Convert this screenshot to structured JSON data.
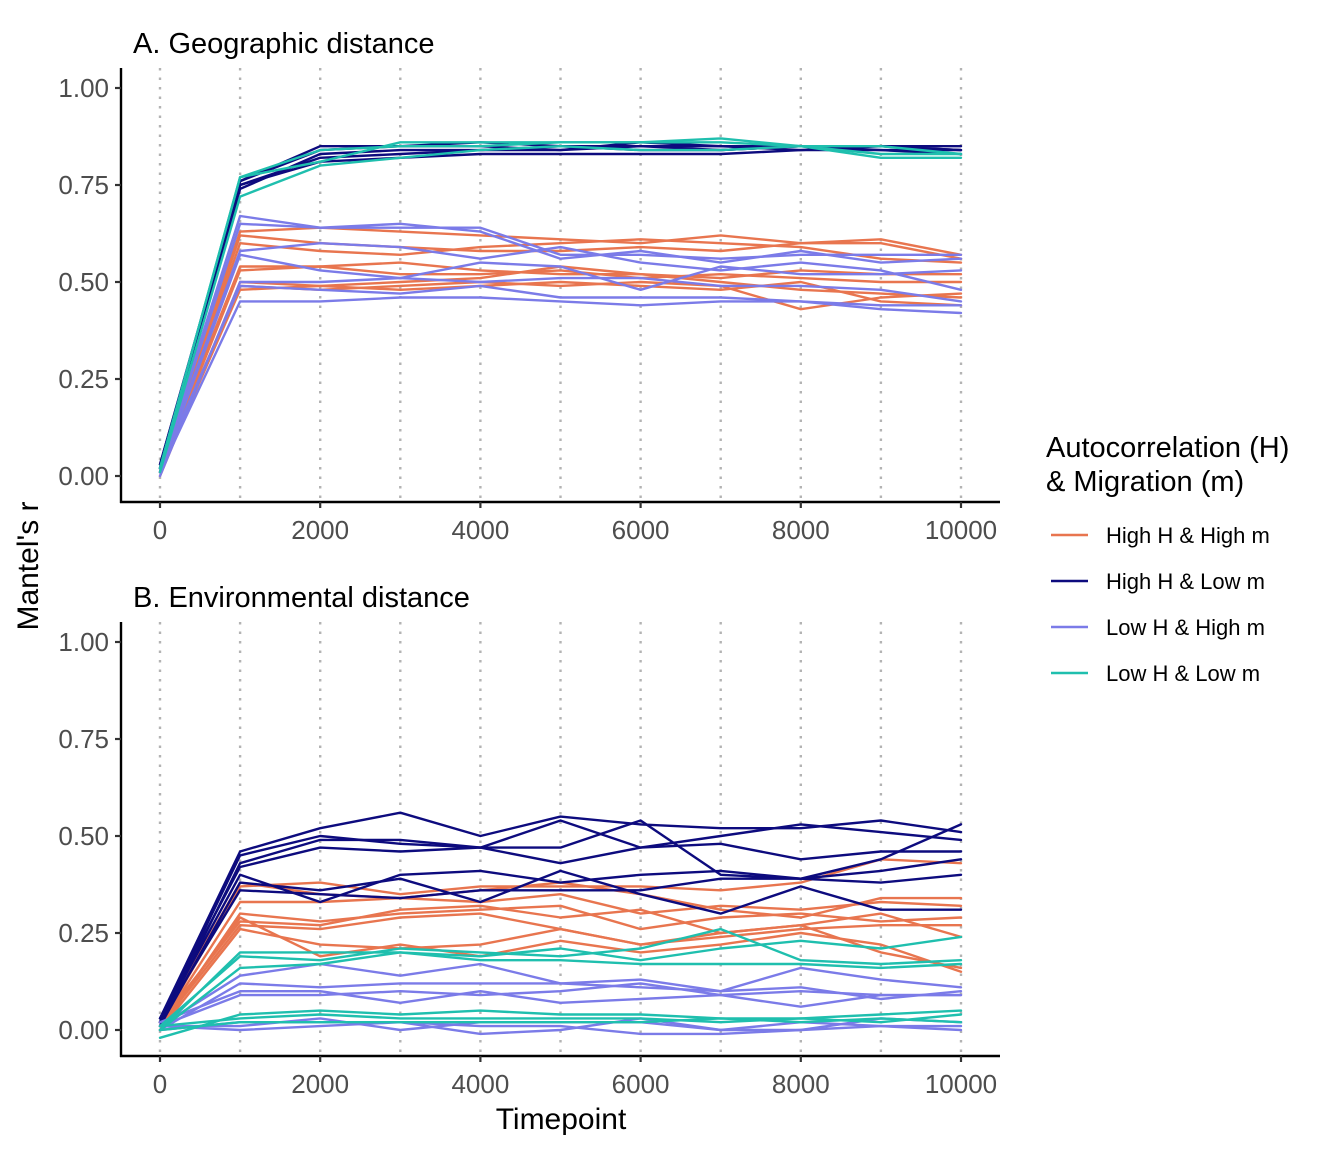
{
  "figure": {
    "ylabel": "Mantel's r",
    "xlabel": "Timepoint"
  },
  "legend": {
    "title_line1": "Autocorrelation (H)",
    "title_line2": "& Migration (m)",
    "placement": "right",
    "items": [
      {
        "label": "High H & High m",
        "color": "#E8754F"
      },
      {
        "label": "High H & Low m",
        "color": "#0D0B7E"
      },
      {
        "label": "Low H & High m",
        "color": "#7B7BE8"
      },
      {
        "label": "Low H & Low m",
        "color": "#1FBFAE"
      }
    ]
  },
  "chart_data": [
    {
      "type": "line",
      "title": "A. Geographic distance",
      "xlabel": "",
      "ylabel": "",
      "xlim": [
        0,
        10000
      ],
      "ylim": [
        0,
        1
      ],
      "x_ticks": [
        "0",
        "2000",
        "4000",
        "6000",
        "8000",
        "10000"
      ],
      "y_ticks": [
        "0.00",
        "0.25",
        "0.50",
        "0.75",
        "1.00"
      ],
      "grid": "vertical dotted at every 1000",
      "x": [
        0,
        1000,
        2000,
        3000,
        4000,
        5000,
        6000,
        7000,
        8000,
        9000,
        10000
      ],
      "series": [
        {
          "group": "High H & High m",
          "values": [
            0.01,
            0.62,
            0.6,
            0.59,
            0.58,
            0.58,
            0.59,
            0.58,
            0.6,
            0.61,
            0.57
          ]
        },
        {
          "group": "High H & High m",
          "values": [
            0.02,
            0.63,
            0.64,
            0.63,
            0.62,
            0.61,
            0.6,
            0.62,
            0.6,
            0.6,
            0.56
          ]
        },
        {
          "group": "High H & High m",
          "values": [
            0.01,
            0.6,
            0.58,
            0.57,
            0.59,
            0.6,
            0.61,
            0.6,
            0.59,
            0.56,
            0.55
          ]
        },
        {
          "group": "High H & High m",
          "values": [
            0.02,
            0.54,
            0.54,
            0.55,
            0.53,
            0.52,
            0.52,
            0.51,
            0.53,
            0.52,
            0.52
          ]
        },
        {
          "group": "High H & High m",
          "values": [
            0.01,
            0.53,
            0.54,
            0.52,
            0.52,
            0.53,
            0.51,
            0.52,
            0.51,
            0.5,
            0.5
          ]
        },
        {
          "group": "High H & High m",
          "values": [
            0.0,
            0.5,
            0.49,
            0.5,
            0.51,
            0.54,
            0.52,
            0.5,
            0.48,
            0.47,
            0.46
          ]
        },
        {
          "group": "High H & High m",
          "values": [
            0.02,
            0.49,
            0.48,
            0.49,
            0.5,
            0.49,
            0.5,
            0.49,
            0.43,
            0.46,
            0.47
          ]
        },
        {
          "group": "High H & High m",
          "values": [
            0.01,
            0.48,
            0.49,
            0.48,
            0.49,
            0.5,
            0.49,
            0.48,
            0.5,
            0.45,
            0.44
          ]
        },
        {
          "group": "High H & Low m",
          "values": [
            0.02,
            0.76,
            0.85,
            0.85,
            0.86,
            0.85,
            0.85,
            0.84,
            0.85,
            0.85,
            0.85
          ]
        },
        {
          "group": "High H & Low m",
          "values": [
            0.03,
            0.75,
            0.82,
            0.83,
            0.84,
            0.84,
            0.85,
            0.85,
            0.84,
            0.85,
            0.84
          ]
        },
        {
          "group": "High H & Low m",
          "values": [
            0.01,
            0.74,
            0.83,
            0.84,
            0.84,
            0.85,
            0.84,
            0.84,
            0.85,
            0.84,
            0.83
          ]
        },
        {
          "group": "High H & Low m",
          "values": [
            0.02,
            0.75,
            0.81,
            0.82,
            0.83,
            0.83,
            0.83,
            0.83,
            0.84,
            0.84,
            0.84
          ]
        },
        {
          "group": "High H & Low m",
          "values": [
            0.03,
            0.76,
            0.84,
            0.85,
            0.85,
            0.84,
            0.86,
            0.85,
            0.85,
            0.85,
            0.84
          ]
        },
        {
          "group": "Low H & High m",
          "values": [
            0.02,
            0.67,
            0.64,
            0.65,
            0.63,
            0.56,
            0.58,
            0.55,
            0.58,
            0.55,
            0.56
          ]
        },
        {
          "group": "Low H & High m",
          "values": [
            0.01,
            0.65,
            0.64,
            0.64,
            0.64,
            0.57,
            0.57,
            0.56,
            0.57,
            0.57,
            0.57
          ]
        },
        {
          "group": "Low H & High m",
          "values": [
            0.02,
            0.58,
            0.6,
            0.59,
            0.56,
            0.59,
            0.55,
            0.53,
            0.55,
            0.53,
            0.48
          ]
        },
        {
          "group": "Low H & High m",
          "values": [
            0.01,
            0.57,
            0.53,
            0.51,
            0.55,
            0.54,
            0.48,
            0.54,
            0.52,
            0.52,
            0.53
          ]
        },
        {
          "group": "Low H & High m",
          "values": [
            0.0,
            0.5,
            0.5,
            0.51,
            0.5,
            0.51,
            0.51,
            0.49,
            0.49,
            0.48,
            0.45
          ]
        },
        {
          "group": "Low H & High m",
          "values": [
            0.02,
            0.49,
            0.48,
            0.47,
            0.49,
            0.46,
            0.46,
            0.46,
            0.45,
            0.44,
            0.44
          ]
        },
        {
          "group": "Low H & High m",
          "values": [
            0.01,
            0.45,
            0.45,
            0.46,
            0.46,
            0.45,
            0.44,
            0.45,
            0.45,
            0.43,
            0.42
          ]
        },
        {
          "group": "Low H & Low m",
          "values": [
            0.02,
            0.77,
            0.81,
            0.86,
            0.86,
            0.86,
            0.86,
            0.86,
            0.85,
            0.82,
            0.82
          ]
        },
        {
          "group": "Low H & Low m",
          "values": [
            0.01,
            0.72,
            0.8,
            0.82,
            0.84,
            0.85,
            0.84,
            0.84,
            0.85,
            0.85,
            0.83
          ]
        },
        {
          "group": "Low H & Low m",
          "values": [
            0.02,
            0.77,
            0.84,
            0.85,
            0.85,
            0.86,
            0.86,
            0.87,
            0.85,
            0.83,
            0.83
          ]
        }
      ]
    },
    {
      "type": "line",
      "title": "B. Environmental distance",
      "xlabel": "Timepoint",
      "ylabel": "",
      "xlim": [
        0,
        10000
      ],
      "ylim": [
        0,
        1
      ],
      "x_ticks": [
        "0",
        "2000",
        "4000",
        "6000",
        "8000",
        "10000"
      ],
      "y_ticks": [
        "0.00",
        "0.25",
        "0.50",
        "0.75",
        "1.00"
      ],
      "grid": "vertical dotted at every 1000",
      "x": [
        0,
        1000,
        2000,
        3000,
        4000,
        5000,
        6000,
        7000,
        8000,
        9000,
        10000
      ],
      "series": [
        {
          "group": "High H & High m",
          "values": [
            0.01,
            0.37,
            0.38,
            0.35,
            0.37,
            0.37,
            0.37,
            0.36,
            0.38,
            0.44,
            0.43
          ]
        },
        {
          "group": "High H & High m",
          "values": [
            0.02,
            0.38,
            0.35,
            0.34,
            0.36,
            0.38,
            0.35,
            0.31,
            0.29,
            0.34,
            0.34
          ]
        },
        {
          "group": "High H & High m",
          "values": [
            0.01,
            0.33,
            0.33,
            0.34,
            0.33,
            0.35,
            0.3,
            0.32,
            0.31,
            0.33,
            0.32
          ]
        },
        {
          "group": "High H & High m",
          "values": [
            0.0,
            0.3,
            0.28,
            0.3,
            0.31,
            0.32,
            0.26,
            0.29,
            0.3,
            0.28,
            0.29
          ]
        },
        {
          "group": "High H & High m",
          "values": [
            0.02,
            0.28,
            0.27,
            0.31,
            0.32,
            0.29,
            0.31,
            0.25,
            0.27,
            0.3,
            0.24
          ]
        },
        {
          "group": "High H & High m",
          "values": [
            0.01,
            0.27,
            0.26,
            0.29,
            0.3,
            0.26,
            0.22,
            0.24,
            0.26,
            0.27,
            0.27
          ]
        },
        {
          "group": "High H & High m",
          "values": [
            0.0,
            0.26,
            0.22,
            0.21,
            0.22,
            0.26,
            0.22,
            0.25,
            0.27,
            0.2,
            0.16
          ]
        },
        {
          "group": "High H & High m",
          "values": [
            0.01,
            0.29,
            0.19,
            0.22,
            0.19,
            0.23,
            0.2,
            0.22,
            0.25,
            0.22,
            0.15
          ]
        },
        {
          "group": "High H & Low m",
          "values": [
            0.03,
            0.46,
            0.52,
            0.56,
            0.5,
            0.55,
            0.53,
            0.52,
            0.52,
            0.54,
            0.51
          ]
        },
        {
          "group": "High H & Low m",
          "values": [
            0.02,
            0.45,
            0.5,
            0.48,
            0.47,
            0.54,
            0.47,
            0.5,
            0.53,
            0.51,
            0.49
          ]
        },
        {
          "group": "High H & Low m",
          "values": [
            0.01,
            0.43,
            0.49,
            0.49,
            0.47,
            0.47,
            0.54,
            0.4,
            0.39,
            0.44,
            0.53
          ]
        },
        {
          "group": "High H & Low m",
          "values": [
            0.03,
            0.42,
            0.47,
            0.46,
            0.47,
            0.43,
            0.47,
            0.48,
            0.44,
            0.46,
            0.46
          ]
        },
        {
          "group": "High H & Low m",
          "values": [
            0.02,
            0.4,
            0.33,
            0.4,
            0.41,
            0.38,
            0.4,
            0.41,
            0.39,
            0.41,
            0.44
          ]
        },
        {
          "group": "High H & Low m",
          "values": [
            0.01,
            0.38,
            0.36,
            0.39,
            0.33,
            0.41,
            0.35,
            0.3,
            0.37,
            0.31,
            0.31
          ]
        },
        {
          "group": "High H & Low m",
          "values": [
            0.02,
            0.36,
            0.35,
            0.34,
            0.36,
            0.36,
            0.36,
            0.39,
            0.39,
            0.38,
            0.4
          ]
        },
        {
          "group": "Low H & High m",
          "values": [
            0.01,
            0.14,
            0.17,
            0.14,
            0.17,
            0.12,
            0.13,
            0.1,
            0.16,
            0.13,
            0.11
          ]
        },
        {
          "group": "Low H & High m",
          "values": [
            0.0,
            0.12,
            0.11,
            0.12,
            0.12,
            0.12,
            0.11,
            0.1,
            0.11,
            0.08,
            0.1
          ]
        },
        {
          "group": "Low H & High m",
          "values": [
            0.02,
            0.1,
            0.1,
            0.07,
            0.1,
            0.07,
            0.08,
            0.09,
            0.1,
            0.09,
            0.09
          ]
        },
        {
          "group": "Low H & High m",
          "values": [
            0.01,
            0.09,
            0.09,
            0.1,
            0.09,
            0.1,
            0.12,
            0.09,
            0.06,
            0.09,
            0.09
          ]
        },
        {
          "group": "Low H & High m",
          "values": [
            0.0,
            0.02,
            0.02,
            0.02,
            -0.01,
            0.0,
            0.03,
            0.0,
            0.0,
            0.03,
            0.02
          ]
        },
        {
          "group": "Low H & High m",
          "values": [
            0.01,
            0.01,
            0.03,
            0.0,
            0.02,
            0.02,
            0.02,
            0.0,
            0.02,
            0.01,
            0.0
          ]
        },
        {
          "group": "Low H & High m",
          "values": [
            0.01,
            0.0,
            0.01,
            0.02,
            0.01,
            0.01,
            -0.01,
            -0.01,
            0.0,
            0.01,
            0.01
          ]
        },
        {
          "group": "Low H & Low m",
          "values": [
            0.0,
            0.2,
            0.2,
            0.2,
            0.19,
            0.21,
            0.18,
            0.21,
            0.23,
            0.21,
            0.24
          ]
        },
        {
          "group": "Low H & Low m",
          "values": [
            0.01,
            0.19,
            0.18,
            0.21,
            0.2,
            0.19,
            0.21,
            0.26,
            0.18,
            0.17,
            0.18
          ]
        },
        {
          "group": "Low H & Low m",
          "values": [
            0.0,
            0.16,
            0.17,
            0.2,
            0.18,
            0.18,
            0.17,
            0.17,
            0.17,
            0.16,
            0.17
          ]
        },
        {
          "group": "Low H & Low m",
          "values": [
            -0.02,
            0.04,
            0.05,
            0.04,
            0.05,
            0.04,
            0.04,
            0.03,
            0.03,
            0.04,
            0.05
          ]
        },
        {
          "group": "Low H & Low m",
          "values": [
            0.01,
            0.03,
            0.04,
            0.03,
            0.03,
            0.03,
            0.03,
            0.02,
            0.03,
            0.02,
            0.04
          ]
        },
        {
          "group": "Low H & Low m",
          "values": [
            0.0,
            0.02,
            0.02,
            0.02,
            0.02,
            0.02,
            0.02,
            0.03,
            0.02,
            0.03,
            0.02
          ]
        }
      ]
    }
  ]
}
